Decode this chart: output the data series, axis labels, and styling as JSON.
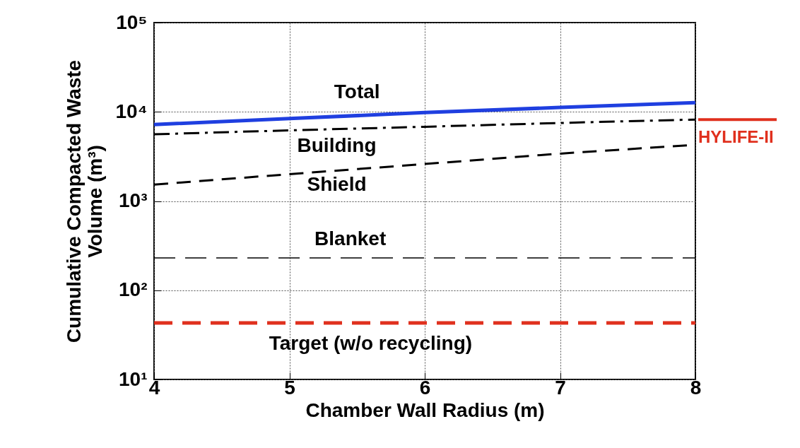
{
  "chart_data": {
    "type": "line",
    "xlabel": "Chamber Wall Radius (m)",
    "ylabel": "Cumulative Compacted Waste\nVolume (m³)",
    "log": true,
    "grid": true,
    "x": [
      4,
      5,
      6,
      7,
      8
    ],
    "series": [
      {
        "name": "Total",
        "color": "#1f3fe0",
        "line_style": "solid",
        "values": [
          7200,
          8400,
          9800,
          11200,
          12700
        ]
      },
      {
        "name": "Building",
        "color": "#000000",
        "line_style": "dashed",
        "values": [
          5600,
          6200,
          6800,
          7500,
          8200
        ]
      },
      {
        "name": "Shield",
        "color": "#000000",
        "line_style": "dashed",
        "values": [
          1530,
          2000,
          2600,
          3400,
          4270
        ]
      },
      {
        "name": "Blanket",
        "color": "#000000",
        "line_style": "dashed",
        "values": [
          230,
          230,
          230,
          230,
          230
        ]
      },
      {
        "name": "Target (w/o recycling)",
        "color": "#e0301e",
        "line_style": "dashed",
        "values": [
          43,
          43,
          43,
          43,
          43
        ]
      }
    ],
    "ref_lines": [
      {
        "axis": "y",
        "value": 8200,
        "label": "HYLIFE-II",
        "color": "#e0301e"
      }
    ],
    "xlim": [
      4,
      8
    ],
    "xticks": [
      4,
      5,
      6,
      7,
      8
    ],
    "ylim": [
      10,
      100000
    ],
    "yticks": [
      {
        "value": 10,
        "label": "10¹"
      },
      {
        "value": 100,
        "label": "10²"
      },
      {
        "value": 1000,
        "label": "10³"
      },
      {
        "value": 10000,
        "label": "10⁴"
      },
      {
        "value": 100000,
        "label": "10⁵"
      }
    ]
  }
}
